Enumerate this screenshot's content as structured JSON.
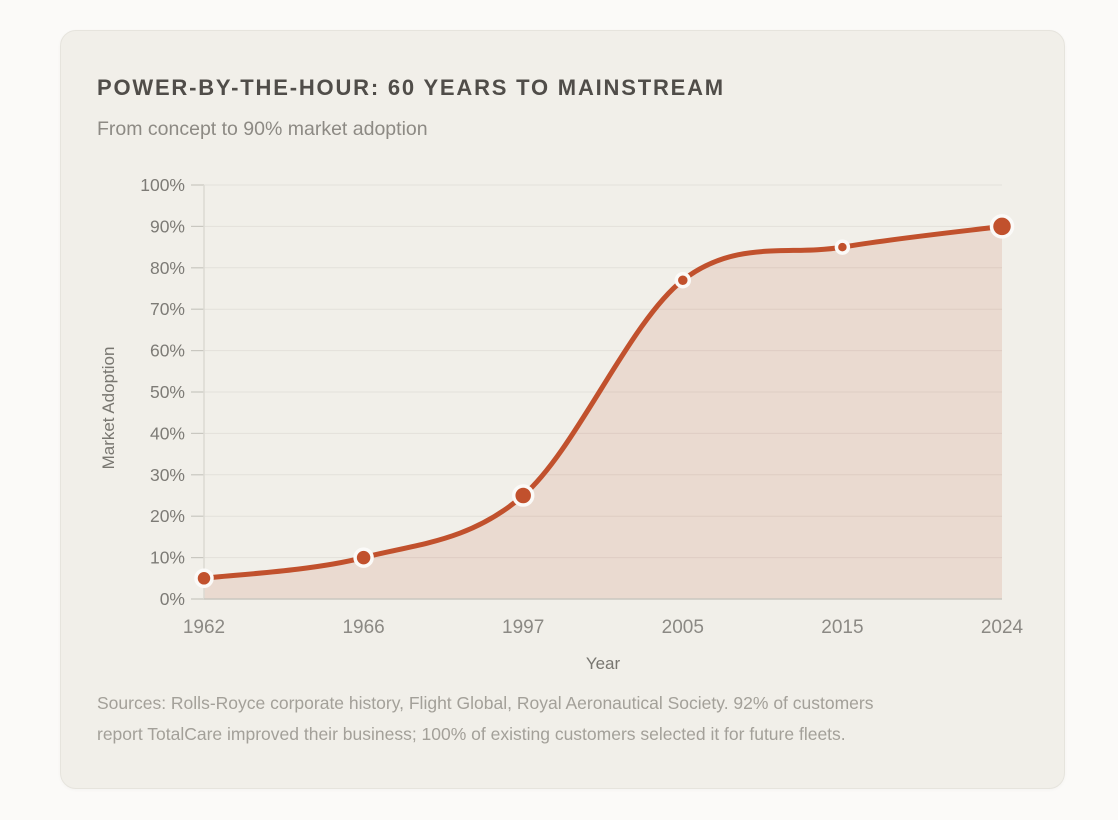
{
  "page": {
    "background": "#fbfaf8"
  },
  "card": {
    "title": "POWER-BY-THE-HOUR: 60 YEARS TO MAINSTREAM",
    "subtitle": "From concept to 90% market adoption",
    "source_lines": [
      "Sources: Rolls-Royce corporate history, Flight Global, Royal Aeronautical Society. 92% of customers",
      "report TotalCare improved their business; 100% of existing customers selected it for future fleets."
    ]
  },
  "chart_data": {
    "type": "area",
    "title": "POWER-BY-THE-HOUR: 60 YEARS TO MAINSTREAM",
    "subtitle": "From concept to 90% market adoption",
    "categories": [
      "1962",
      "1966",
      "1997",
      "2005",
      "2015",
      "2024"
    ],
    "x_years": [
      1962,
      1966,
      1997,
      2005,
      2015,
      2024
    ],
    "values": [
      5,
      10,
      25,
      77,
      85,
      90
    ],
    "unit": "%",
    "xlabel": "Year",
    "ylabel": "Market Adoption",
    "ylim": [
      0,
      100
    ],
    "ytick_step": 10,
    "ytick_labels": [
      "0%",
      "10%",
      "20%",
      "30%",
      "40%",
      "50%",
      "60%",
      "70%",
      "80%",
      "90%",
      "100%"
    ],
    "x_spacing": "even-categorical",
    "grid": "horizontal",
    "legend": "none",
    "curve": "smooth",
    "point_radii": [
      8,
      8.5,
      9.5,
      6.5,
      6,
      10.5
    ],
    "colors": {
      "line": "#c1512d",
      "point": "#c1512d",
      "point_ring": "#fbfaf8",
      "area_fill": "rgba(193,81,45,0.13)",
      "grid": "#e3e1da",
      "axis_x": "#c9c7c0",
      "axis_y": "#dcdad3",
      "tick_mark": "#c9c7c0",
      "ytick_text": "#7d7b76",
      "xtick_text": "#8b8984",
      "axis_label_text": "#787670"
    }
  }
}
